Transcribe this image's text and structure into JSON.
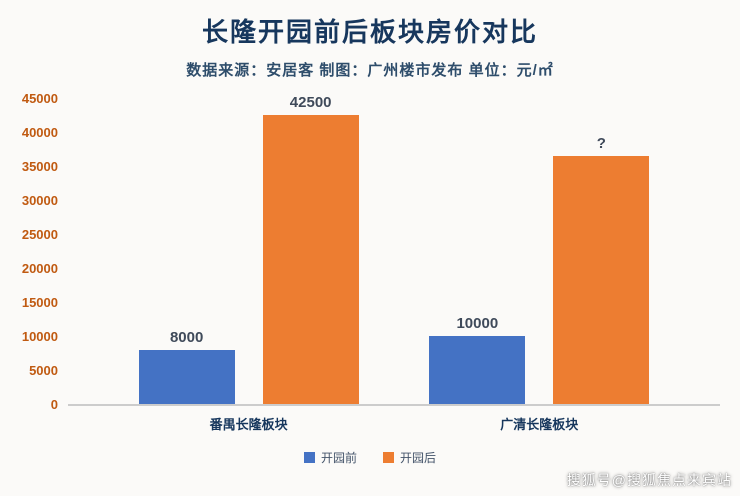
{
  "chart_data": {
    "type": "bar",
    "title": "长隆开园前后板块房价对比",
    "subtitle": "数据来源：安居客 制图：广州楼市发布 单位：元/㎡",
    "categories": [
      "番禺长隆板块",
      "广清长隆板块"
    ],
    "series": [
      {
        "name": "开园前",
        "color": "#4472c4",
        "values": [
          8000,
          10000
        ],
        "labels": [
          "8000",
          "10000"
        ]
      },
      {
        "name": "开园后",
        "color": "#ed7d31",
        "values": [
          42500,
          36500
        ],
        "labels": [
          "42500",
          "?"
        ]
      }
    ],
    "ylim": [
      0,
      45000
    ],
    "yticks": [
      45000,
      40000,
      35000,
      30000,
      25000,
      20000,
      15000,
      10000,
      5000,
      0
    ],
    "ytick_color": "#c05a11",
    "grid": false,
    "legend_position": "bottom"
  },
  "watermark": {
    "text": "搜狐号@搜狐焦点来宾站"
  }
}
